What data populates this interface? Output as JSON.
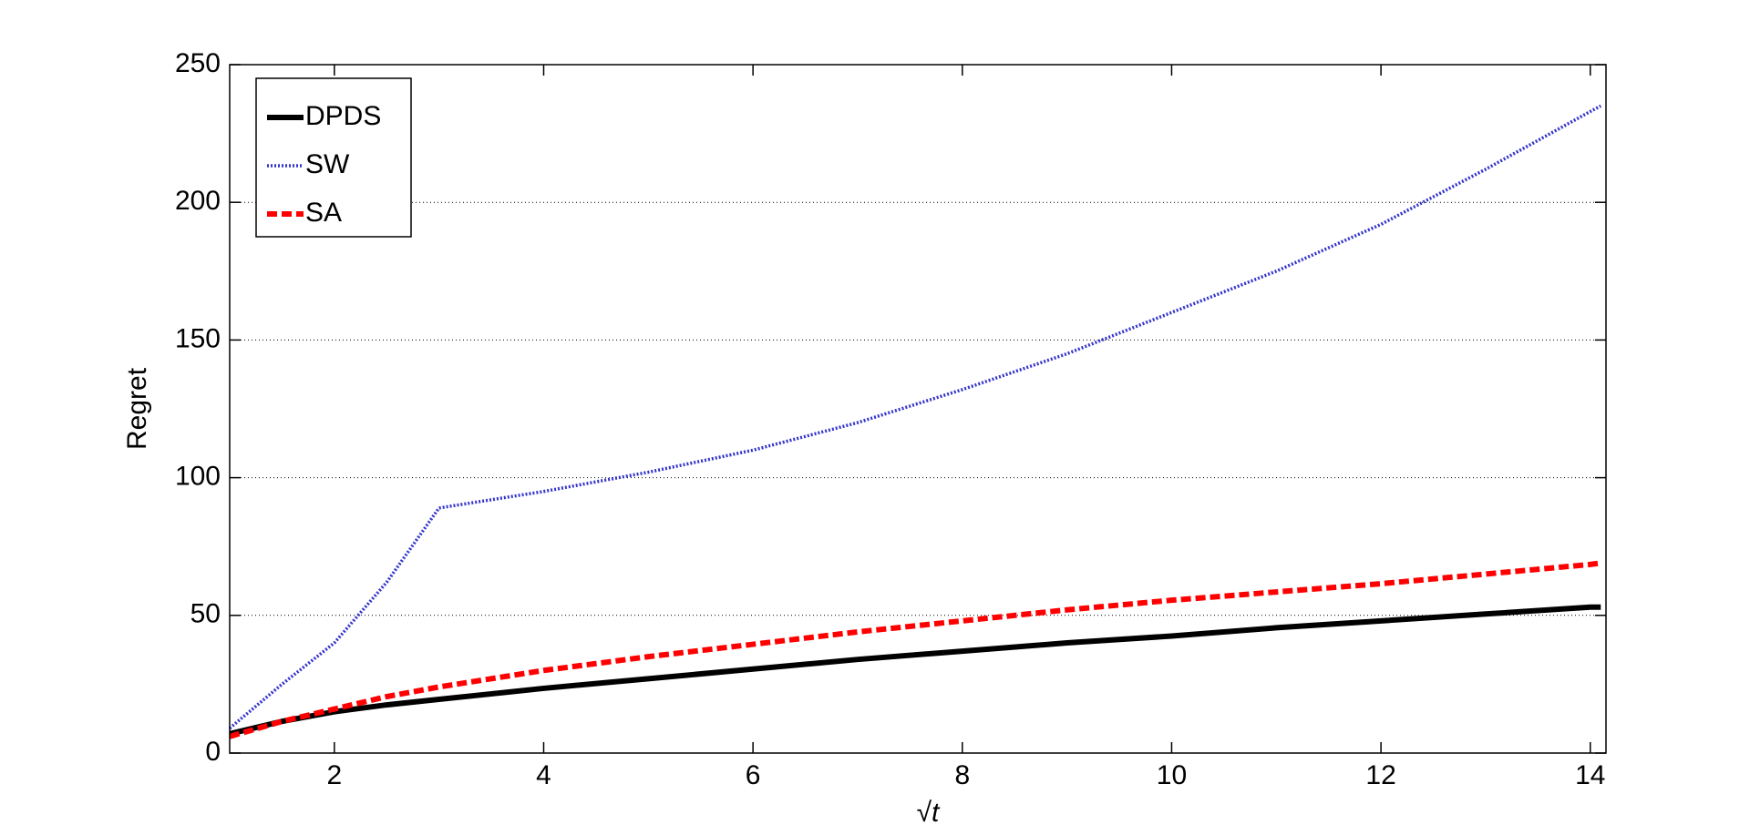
{
  "chart_data": {
    "type": "line",
    "x_label": "√t",
    "y_label": "Regret",
    "x": [
      1,
      1.5,
      2,
      2.5,
      3,
      4,
      5,
      6,
      7,
      8,
      9,
      10,
      11,
      12,
      13,
      14,
      14.1
    ],
    "series": [
      {
        "name": "DPDS",
        "color": "#000000",
        "style": "solid",
        "values": [
          7,
          11.5,
          15,
          17.5,
          19.5,
          23.5,
          27,
          30.5,
          34,
          37,
          40,
          42.5,
          45.5,
          48,
          50.5,
          53,
          53
        ]
      },
      {
        "name": "SW",
        "color": "#3333cc",
        "style": "dotted",
        "values": [
          9,
          25,
          40,
          62,
          89,
          95,
          102,
          110,
          120,
          132,
          145,
          160,
          175,
          192,
          212,
          233,
          235
        ]
      },
      {
        "name": "SA",
        "color": "#ff0000",
        "style": "dashed",
        "values": [
          6,
          11.5,
          16,
          20.5,
          24,
          30,
          35,
          39.5,
          44,
          48,
          52,
          55.5,
          58.5,
          61.5,
          65,
          68.5,
          69
        ]
      }
    ],
    "xlim": [
      1,
      14.15
    ],
    "ylim": [
      0,
      250
    ],
    "xticks": [
      2,
      4,
      6,
      8,
      10,
      12,
      14
    ],
    "yticks": [
      0,
      50,
      100,
      150,
      200,
      250
    ],
    "grid": "y",
    "legend": "upper-left"
  }
}
